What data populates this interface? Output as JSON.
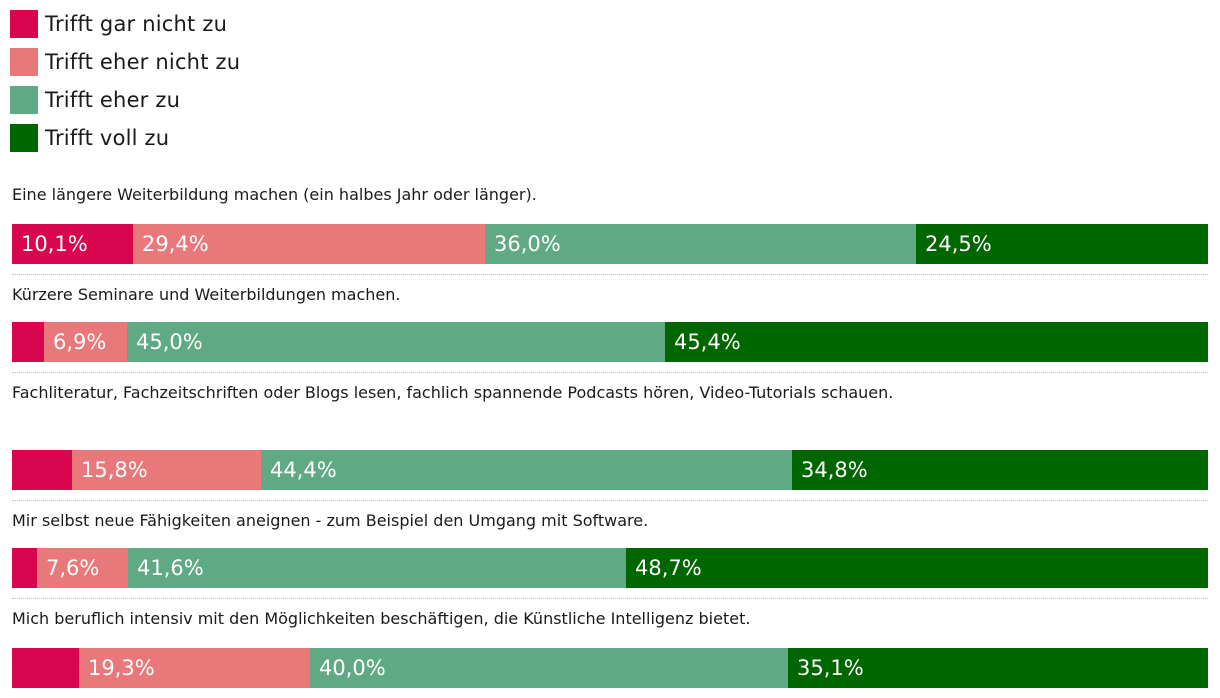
{
  "chart_data": {
    "type": "bar",
    "orientation": "horizontal-stacked-100",
    "legend": [
      {
        "label": "Trifft gar nicht zu",
        "color": "#d9064f"
      },
      {
        "label": "Trifft eher nicht zu",
        "color": "#e8787a"
      },
      {
        "label": "Trifft eher zu",
        "color": "#5fa985"
      },
      {
        "label": "Trifft voll zu",
        "color": "#006600"
      }
    ],
    "rows": [
      {
        "label": "Eine längere Weiterbildung machen (ein halbes Jahr oder länger).",
        "values": [
          10.1,
          29.4,
          36.0,
          24.5
        ],
        "display": [
          "10,1%",
          "29,4%",
          "36,0%",
          "24,5%"
        ]
      },
      {
        "label": "Kürzere Seminare und Weiterbildungen machen.",
        "values": [
          2.7,
          6.9,
          45.0,
          45.4
        ],
        "display": [
          "",
          "6,9%",
          "45,0%",
          "45,4%"
        ]
      },
      {
        "label": "Fachliteratur, Fachzeitschriften oder Blogs lesen, fachlich spannende Podcasts hören, Video-Tutorials schauen.",
        "values": [
          5.0,
          15.8,
          44.4,
          34.8
        ],
        "display": [
          "",
          "15,8%",
          "44,4%",
          "34,8%"
        ]
      },
      {
        "label": "Mir selbst neue Fähigkeiten aneignen - zum Beispiel den Umgang mit Software.",
        "values": [
          2.1,
          7.6,
          41.6,
          48.7
        ],
        "display": [
          "",
          "7,6%",
          "41,6%",
          "48,7%"
        ]
      },
      {
        "label": "Mich beruflich intensiv mit den Möglichkeiten beschäftigen, die Künstliche Intelligenz bietet.",
        "values": [
          5.6,
          19.3,
          40.0,
          35.1
        ],
        "display": [
          "",
          "19,3%",
          "40,0%",
          "35,1%"
        ]
      }
    ]
  }
}
